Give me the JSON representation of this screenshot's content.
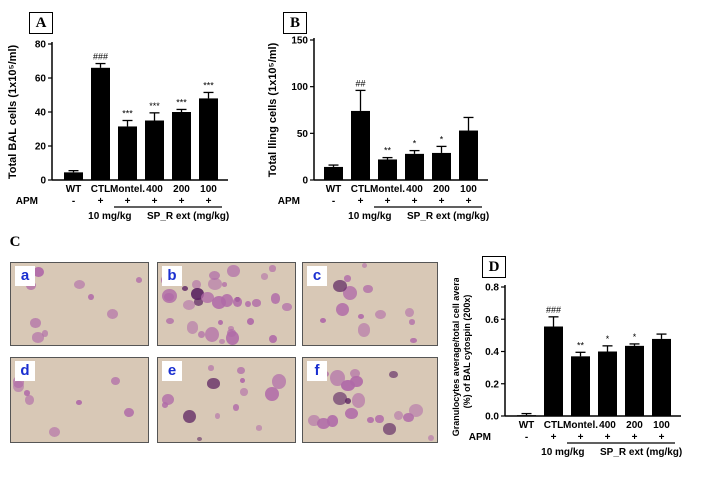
{
  "panels": {
    "A": {
      "letter": "A"
    },
    "B": {
      "letter": "B"
    },
    "C": {
      "letter": "C"
    },
    "D": {
      "letter": "D"
    }
  },
  "microscopy": {
    "labels": [
      "a",
      "b",
      "c",
      "d",
      "e",
      "f"
    ]
  },
  "colors": {
    "bar": "#000000",
    "micro_bg": "#d8c8b6",
    "cell_stain": "#b06aa8",
    "cell_dark": "#5a2160",
    "panel_label_text": "#1a2fd0"
  },
  "chart_data": [
    {
      "id": "A",
      "type": "bar",
      "ylabel": "Total BAL cells (1x10⁵/ml)",
      "ylim": [
        0,
        80
      ],
      "yticks": [
        "0",
        "20",
        "40",
        "60",
        "80"
      ],
      "categories": [
        "WT",
        "CTL",
        "Montel.",
        "400",
        "200",
        "100"
      ],
      "values": [
        4.5,
        66,
        31.5,
        35,
        40,
        48
      ],
      "errors": [
        1,
        2.5,
        3.5,
        4.5,
        1.5,
        3.5
      ],
      "annotations": [
        "",
        "###",
        "***",
        "***",
        "***",
        "***"
      ],
      "apm": [
        "-",
        "+",
        "+",
        "+",
        "+",
        "+"
      ],
      "apm_label": "APM",
      "dose_label": "10 mg/kg",
      "group_label": "SP_R ext (mg/kg)"
    },
    {
      "id": "B",
      "type": "bar",
      "ylabel": "Total lling cells (1x10⁵/ml)",
      "ylim": [
        0,
        150
      ],
      "yticks": [
        "0",
        "50",
        "100",
        "150"
      ],
      "categories": [
        "WT",
        "CTL",
        "Montel.",
        "400",
        "200",
        "100"
      ],
      "values": [
        14,
        74,
        22,
        28,
        29,
        53
      ],
      "errors": [
        2,
        22,
        2,
        3.5,
        7,
        14
      ],
      "annotations": [
        "",
        "##",
        "**",
        "*",
        "*",
        ""
      ],
      "apm": [
        "-",
        "+",
        "+",
        "+",
        "+",
        "+"
      ],
      "apm_label": "APM",
      "dose_label": "10 mg/kg",
      "group_label": "SP_R ext (mg/kg)"
    },
    {
      "id": "D",
      "type": "bar",
      "ylabel": "Granulocytes average/total cell average (%) of BAL cytospin (200x)",
      "ylim": [
        0,
        0.8
      ],
      "yticks": [
        "0.0",
        "0.2",
        "0.4",
        "0.6",
        "0.8"
      ],
      "categories": [
        "WT",
        "CTL",
        "Montel.",
        "400",
        "200",
        "100"
      ],
      "values": [
        0.005,
        0.555,
        0.37,
        0.4,
        0.435,
        0.478
      ],
      "errors": [
        0.01,
        0.06,
        0.025,
        0.035,
        0.012,
        0.03
      ],
      "annotations": [
        "",
        "###",
        "**",
        "*",
        "*",
        ""
      ],
      "apm": [
        "-",
        "+",
        "+",
        "+",
        "+",
        "+"
      ],
      "apm_label": "APM",
      "dose_label": "10 mg/kg",
      "group_label": "SP_R ext (mg/kg)"
    }
  ]
}
